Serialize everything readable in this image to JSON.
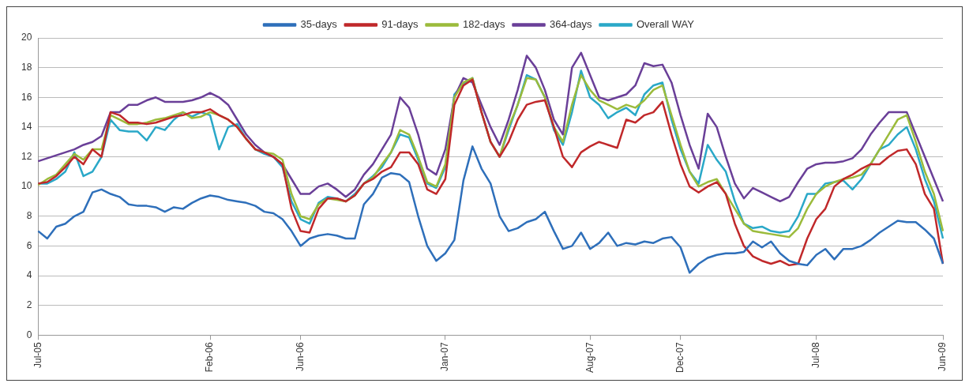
{
  "chart_data": {
    "type": "line",
    "categories": [
      "Jul-05",
      null,
      null,
      null,
      null,
      null,
      null,
      null,
      null,
      null,
      null,
      null,
      null,
      null,
      null,
      null,
      null,
      null,
      null,
      "Feb-06",
      null,
      null,
      null,
      null,
      null,
      null,
      null,
      null,
      null,
      "Jun-06",
      null,
      null,
      null,
      null,
      null,
      null,
      null,
      null,
      null,
      null,
      null,
      null,
      null,
      null,
      null,
      "Jan-07",
      null,
      null,
      null,
      null,
      null,
      null,
      null,
      null,
      null,
      null,
      null,
      null,
      null,
      null,
      null,
      "Aug-07",
      null,
      null,
      null,
      null,
      null,
      null,
      null,
      null,
      null,
      "Dec-07",
      null,
      null,
      null,
      null,
      null,
      null,
      null,
      null,
      null,
      null,
      null,
      null,
      null,
      null,
      "Jul-08",
      null,
      null,
      null,
      null,
      null,
      null,
      null,
      null,
      null,
      null,
      null,
      null,
      null,
      "Jun-09"
    ],
    "series": [
      {
        "name": "35-days",
        "color": "#2e6fba",
        "values": [
          7.0,
          6.5,
          7.3,
          7.5,
          8.0,
          8.3,
          9.6,
          9.8,
          9.5,
          9.3,
          8.8,
          8.7,
          8.7,
          8.6,
          8.3,
          8.6,
          8.5,
          8.9,
          9.2,
          9.4,
          9.3,
          9.1,
          9.0,
          8.9,
          8.7,
          8.3,
          8.2,
          7.8,
          7.0,
          6.0,
          6.5,
          6.7,
          6.8,
          6.7,
          6.5,
          6.5,
          8.8,
          9.5,
          10.6,
          10.9,
          10.8,
          10.3,
          8.0,
          6.0,
          5.0,
          5.5,
          6.4,
          10.4,
          12.7,
          11.2,
          10.2,
          8.0,
          7.0,
          7.2,
          7.6,
          7.8,
          8.3,
          7.0,
          5.8,
          6.0,
          6.9,
          5.8,
          6.2,
          6.9,
          6.0,
          6.2,
          6.1,
          6.3,
          6.2,
          6.5,
          6.6,
          5.9,
          4.2,
          4.8,
          5.2,
          5.4,
          5.5,
          5.5,
          5.6,
          6.3,
          5.9,
          6.3,
          5.5,
          5.0,
          4.8,
          4.7,
          5.4,
          5.8,
          5.1,
          5.8,
          5.8,
          6.0,
          6.4,
          6.9,
          7.3,
          7.7,
          7.6,
          7.6,
          7.1,
          6.5,
          4.8
        ]
      },
      {
        "name": "91-days",
        "color": "#c0282a",
        "values": [
          10.2,
          10.3,
          10.7,
          11.3,
          12.0,
          11.5,
          12.5,
          12.0,
          15.0,
          14.8,
          14.3,
          14.3,
          14.2,
          14.3,
          14.5,
          14.7,
          14.8,
          15.0,
          15.0,
          15.2,
          14.8,
          14.5,
          14.0,
          13.2,
          12.5,
          12.3,
          12.0,
          11.5,
          8.5,
          7.0,
          6.9,
          8.5,
          9.2,
          9.2,
          9.0,
          9.4,
          10.2,
          10.5,
          11.0,
          11.3,
          12.3,
          12.3,
          11.5,
          9.8,
          9.5,
          10.5,
          15.5,
          16.8,
          17.2,
          15.0,
          13.0,
          12.0,
          13.0,
          14.5,
          15.5,
          15.7,
          15.8,
          14.0,
          12.0,
          11.3,
          12.3,
          12.7,
          13.0,
          12.8,
          12.6,
          14.5,
          14.3,
          14.8,
          15.0,
          15.7,
          13.5,
          11.5,
          10.0,
          9.6,
          10.0,
          10.3,
          9.5,
          7.5,
          6.0,
          5.3,
          5.0,
          4.8,
          5.0,
          4.7,
          4.8,
          6.5,
          7.8,
          8.5,
          10.0,
          10.5,
          10.8,
          11.2,
          11.5,
          11.5,
          12.0,
          12.4,
          12.5,
          11.5,
          9.5,
          8.5,
          4.8
        ]
      },
      {
        "name": "182-days",
        "color": "#9bbb3b",
        "values": [
          10.1,
          10.5,
          10.8,
          11.5,
          12.2,
          11.8,
          12.5,
          12.5,
          14.8,
          14.5,
          14.2,
          14.2,
          14.3,
          14.5,
          14.6,
          14.8,
          15.0,
          14.6,
          14.7,
          15.0,
          14.8,
          14.5,
          14.0,
          13.2,
          12.5,
          12.3,
          12.2,
          11.8,
          9.5,
          8.0,
          7.8,
          8.8,
          9.2,
          9.1,
          9.0,
          9.4,
          10.2,
          10.6,
          11.5,
          12.3,
          13.8,
          13.5,
          12.0,
          10.3,
          10.0,
          11.5,
          16.0,
          17.0,
          17.3,
          15.0,
          13.0,
          12.0,
          14.0,
          15.5,
          17.3,
          17.2,
          16.0,
          14.0,
          13.0,
          15.5,
          17.5,
          16.5,
          15.8,
          15.5,
          15.2,
          15.5,
          15.3,
          15.8,
          16.5,
          16.8,
          14.8,
          12.8,
          11.0,
          10.0,
          10.3,
          10.5,
          9.5,
          8.5,
          7.5,
          7.0,
          6.9,
          6.8,
          6.7,
          6.6,
          7.2,
          8.5,
          9.5,
          10.0,
          10.3,
          10.5,
          10.6,
          10.8,
          11.5,
          12.5,
          13.5,
          14.5,
          14.8,
          13.0,
          11.0,
          9.5,
          7.0
        ]
      },
      {
        "name": "364-days",
        "color": "#6a3f98",
        "values": [
          11.7,
          11.9,
          12.1,
          12.3,
          12.5,
          12.8,
          13.0,
          13.4,
          15.0,
          15.0,
          15.5,
          15.5,
          15.8,
          16.0,
          15.7,
          15.7,
          15.7,
          15.8,
          16.0,
          16.3,
          16.0,
          15.5,
          14.5,
          13.5,
          12.8,
          12.3,
          12.0,
          11.5,
          10.5,
          9.5,
          9.5,
          10.0,
          10.2,
          9.8,
          9.3,
          9.8,
          10.8,
          11.5,
          12.5,
          13.5,
          16.0,
          15.3,
          13.5,
          11.2,
          10.8,
          12.5,
          16.0,
          17.3,
          17.0,
          15.5,
          14.0,
          12.8,
          14.5,
          16.5,
          18.8,
          18.0,
          16.5,
          14.5,
          13.5,
          18.0,
          19.0,
          17.5,
          16.0,
          15.8,
          16.0,
          16.2,
          16.8,
          18.3,
          18.1,
          18.2,
          17.0,
          14.8,
          12.8,
          11.2,
          14.9,
          14.0,
          12.0,
          10.2,
          9.2,
          9.9,
          9.6,
          9.3,
          9.0,
          9.3,
          10.3,
          11.2,
          11.5,
          11.6,
          11.6,
          11.7,
          11.9,
          12.5,
          13.5,
          14.3,
          15.0,
          15.0,
          15.0,
          13.5,
          12.0,
          10.5,
          9.0
        ]
      },
      {
        "name": "Overall WAY",
        "color": "#2aa8c8",
        "values": [
          10.2,
          10.2,
          10.5,
          11.0,
          12.3,
          10.7,
          11.0,
          12.0,
          14.5,
          13.8,
          13.7,
          13.7,
          13.1,
          14.0,
          13.8,
          14.5,
          15.0,
          14.7,
          15.0,
          14.8,
          12.5,
          14.0,
          14.2,
          13.2,
          12.5,
          12.2,
          12.0,
          11.3,
          9.0,
          7.8,
          7.5,
          8.9,
          9.3,
          9.2,
          9.0,
          9.5,
          10.2,
          10.7,
          11.3,
          12.3,
          13.5,
          13.3,
          11.8,
          10.2,
          9.9,
          11.3,
          16.2,
          16.9,
          17.3,
          15.0,
          13.0,
          12.0,
          13.8,
          15.5,
          17.5,
          17.2,
          16.0,
          13.8,
          12.8,
          15.0,
          17.8,
          16.0,
          15.5,
          14.6,
          15.0,
          15.3,
          14.8,
          16.2,
          16.8,
          17.0,
          14.5,
          12.5,
          11.0,
          10.2,
          12.8,
          11.8,
          11.0,
          9.0,
          7.5,
          7.2,
          7.3,
          7.0,
          6.9,
          7.0,
          8.0,
          9.5,
          9.5,
          10.2,
          10.3,
          10.4,
          9.8,
          10.5,
          11.5,
          12.5,
          12.8,
          13.5,
          14.0,
          12.5,
          10.5,
          9.0,
          6.5
        ]
      }
    ],
    "ylim": [
      0,
      20
    ],
    "yticks": [
      0,
      2,
      4,
      6,
      8,
      10,
      12,
      14,
      16,
      18,
      20
    ],
    "grid": "y",
    "legend": "top",
    "marker": "none",
    "line_style": "solid"
  }
}
